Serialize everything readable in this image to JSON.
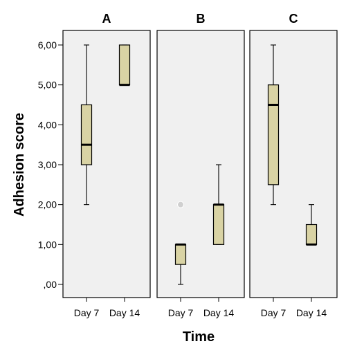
{
  "chart_data": {
    "type": "boxplot",
    "xlabel": "Time",
    "ylabel": "Adhesion score",
    "ylim": [
      0,
      6
    ],
    "yticks": [
      0,
      1,
      2,
      3,
      4,
      5,
      6
    ],
    "ytick_labels": [
      ",00",
      "1,00",
      "2,00",
      "3,00",
      "4,00",
      "5,00",
      "6,00"
    ],
    "categories": [
      "Day 7",
      "Day 14"
    ],
    "box_color": "#d9d3a4",
    "panel_bg": "#f0f0f0",
    "panels": [
      {
        "title": "A",
        "boxes": [
          {
            "category": "Day 7",
            "min": 2,
            "q1": 3,
            "median": 3.5,
            "q3": 4.5,
            "max": 6,
            "outliers": []
          },
          {
            "category": "Day 14",
            "min": 5,
            "q1": 5,
            "median": 5,
            "q3": 6,
            "max": 6,
            "outliers": []
          }
        ]
      },
      {
        "title": "B",
        "boxes": [
          {
            "category": "Day 7",
            "min": 0,
            "q1": 0.5,
            "median": 1,
            "q3": 1,
            "max": 1,
            "outliers": [
              2
            ]
          },
          {
            "category": "Day 14",
            "min": 1,
            "q1": 1,
            "median": 2,
            "q3": 2,
            "max": 3,
            "outliers": []
          }
        ]
      },
      {
        "title": "C",
        "boxes": [
          {
            "category": "Day 7",
            "min": 2,
            "q1": 2.5,
            "median": 4.5,
            "q3": 5,
            "max": 6,
            "outliers": []
          },
          {
            "category": "Day 14",
            "min": 1,
            "q1": 1,
            "median": 1,
            "q3": 1.5,
            "max": 2,
            "outliers": []
          }
        ]
      }
    ]
  }
}
